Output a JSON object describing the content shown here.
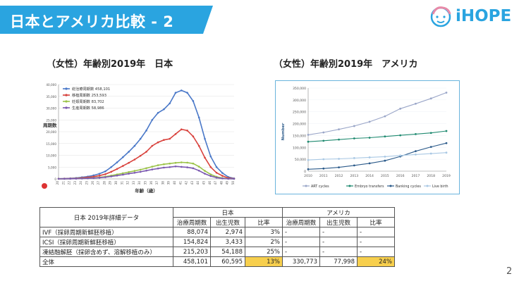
{
  "header": {
    "title": "日本とアメリカ比較 - 2",
    "logo_text": "iHOPE",
    "accent": "#2aa4e0"
  },
  "left_heading": "（女性）年齢別2019年　日本",
  "right_heading": "（女性）年齢別2019年　アメリカ",
  "chart_data": [
    {
      "type": "line",
      "title": "（女性）年齢別2019年　日本",
      "xlabel": "年齢（歳）",
      "ylabel": "周期数",
      "ylim": [
        0,
        40000
      ],
      "yticks": [
        "0",
        "5,000",
        "10,000",
        "15,000",
        "20,000",
        "25,000",
        "30,000",
        "35,000",
        "40,000"
      ],
      "x": [
        20,
        21,
        22,
        23,
        24,
        25,
        26,
        27,
        28,
        29,
        30,
        31,
        32,
        33,
        34,
        35,
        36,
        37,
        38,
        39,
        40,
        41,
        42,
        43,
        44,
        45,
        46,
        47,
        48,
        49,
        50
      ],
      "x_tick_labels": [
        "20",
        "21",
        "22",
        "23",
        "24",
        "25",
        "26",
        "27",
        "28",
        "29",
        "30",
        "31",
        "32",
        "33",
        "34",
        "35",
        "36",
        "37",
        "38",
        "39",
        "40",
        "41",
        "42",
        "43",
        "44",
        "45",
        "46",
        "47",
        "48",
        "49",
        "50"
      ],
      "legend_position": "top-left",
      "series": [
        {
          "name": "総治療周期数 458,101",
          "color": "#4a78c8",
          "values": [
            80,
            150,
            250,
            400,
            700,
            1000,
            1500,
            2200,
            3200,
            5000,
            7000,
            9200,
            11500,
            14000,
            17000,
            20500,
            25000,
            28000,
            29500,
            32000,
            36500,
            37500,
            36500,
            33000,
            26000,
            17000,
            9500,
            5000,
            2500,
            800,
            200
          ]
        },
        {
          "name": "移植周期数 253,593",
          "color": "#d9423d",
          "values": [
            50,
            90,
            150,
            250,
            450,
            650,
            950,
            1400,
            2000,
            3000,
            4200,
            5500,
            6800,
            8200,
            9800,
            11500,
            14000,
            15500,
            16500,
            17000,
            19000,
            21000,
            20500,
            18000,
            14000,
            9000,
            5000,
            2600,
            1300,
            400,
            100
          ]
        },
        {
          "name": "妊娠周期数 83,702",
          "color": "#9bc349",
          "values": [
            20,
            40,
            70,
            120,
            200,
            300,
            450,
            650,
            950,
            1400,
            1900,
            2400,
            2900,
            3400,
            3900,
            4500,
            5200,
            5800,
            6200,
            6500,
            6800,
            7000,
            6900,
            6500,
            5200,
            3400,
            1900,
            900,
            350,
            100,
            30
          ]
        },
        {
          "name": "生産周期数 58,986",
          "color": "#7b59b0",
          "values": [
            15,
            30,
            55,
            90,
            150,
            230,
            350,
            500,
            720,
            1050,
            1400,
            1800,
            2200,
            2600,
            3000,
            3500,
            4000,
            4400,
            4800,
            5000,
            5300,
            5100,
            4900,
            4500,
            3500,
            2200,
            1200,
            550,
            200,
            60,
            15
          ]
        }
      ]
    },
    {
      "type": "line",
      "title": "（女性）年齢別2019年　アメリカ",
      "xlabel": "",
      "ylabel": "Number",
      "ylim": [
        0,
        350000
      ],
      "yticks": [
        "0",
        "50,000",
        "100,000",
        "150,000",
        "200,000",
        "250,000",
        "300,000",
        "350,000"
      ],
      "x": [
        2010,
        2011,
        2012,
        2013,
        2014,
        2015,
        2016,
        2017,
        2018,
        2019
      ],
      "x_tick_labels": [
        "2010",
        "2011",
        "2012",
        "2013",
        "2014",
        "2015",
        "2016",
        "2017",
        "2018",
        "2019"
      ],
      "legend_position": "bottom",
      "series": [
        {
          "name": "ART cycles",
          "color": "#9aa6c8",
          "values": [
            153000,
            163000,
            176000,
            190000,
            208000,
            231000,
            263000,
            284000,
            306000,
            330773
          ]
        },
        {
          "name": "Embryo transfers",
          "color": "#1f8a70",
          "values": [
            124000,
            128000,
            133000,
            138000,
            141000,
            146000,
            151000,
            156000,
            161000,
            169000
          ]
        },
        {
          "name": "Banking cycles",
          "color": "#2b5a8a",
          "values": [
            8000,
            11000,
            16000,
            24000,
            33000,
            44000,
            62000,
            84000,
            102000,
            118000
          ]
        },
        {
          "name": "Live birth",
          "color": "#a9c8e4",
          "values": [
            47000,
            50000,
            52000,
            55000,
            58000,
            61000,
            66000,
            70000,
            74000,
            77998
          ]
        }
      ]
    }
  ],
  "table": {
    "corner_label": "日本 2019年詳細データ",
    "japan_label": "日本",
    "usa_label": "アメリカ",
    "sub_headers": [
      "治療周期数",
      "出生児数",
      "比率",
      "治療周期数",
      "出生児数",
      "比率"
    ],
    "rows": [
      {
        "label": "IVF（採卵周期新鮮胚移植）",
        "jp_cycles": "88,074",
        "jp_births": "2,974",
        "jp_ratio": "3%",
        "us_cycles": "-",
        "us_births": "-",
        "us_ratio": "-"
      },
      {
        "label": "ICSI（採卵周期新鮮胚移植）",
        "jp_cycles": "154,824",
        "jp_births": "3,433",
        "jp_ratio": "2%",
        "us_cycles": "-",
        "us_births": "-",
        "us_ratio": "-"
      },
      {
        "label": "凍結融解胚（採卵含めず、溶解移植のみ）",
        "jp_cycles": "215,203",
        "jp_births": "54,188",
        "jp_ratio": "25%",
        "us_cycles": "-",
        "us_births": "-",
        "us_ratio": "-"
      },
      {
        "label": "全体",
        "jp_cycles": "458,101",
        "jp_births": "60,595",
        "jp_ratio": "13%",
        "us_cycles": "330,773",
        "us_births": "77,998",
        "us_ratio": "24%"
      }
    ]
  },
  "page_number": "2"
}
